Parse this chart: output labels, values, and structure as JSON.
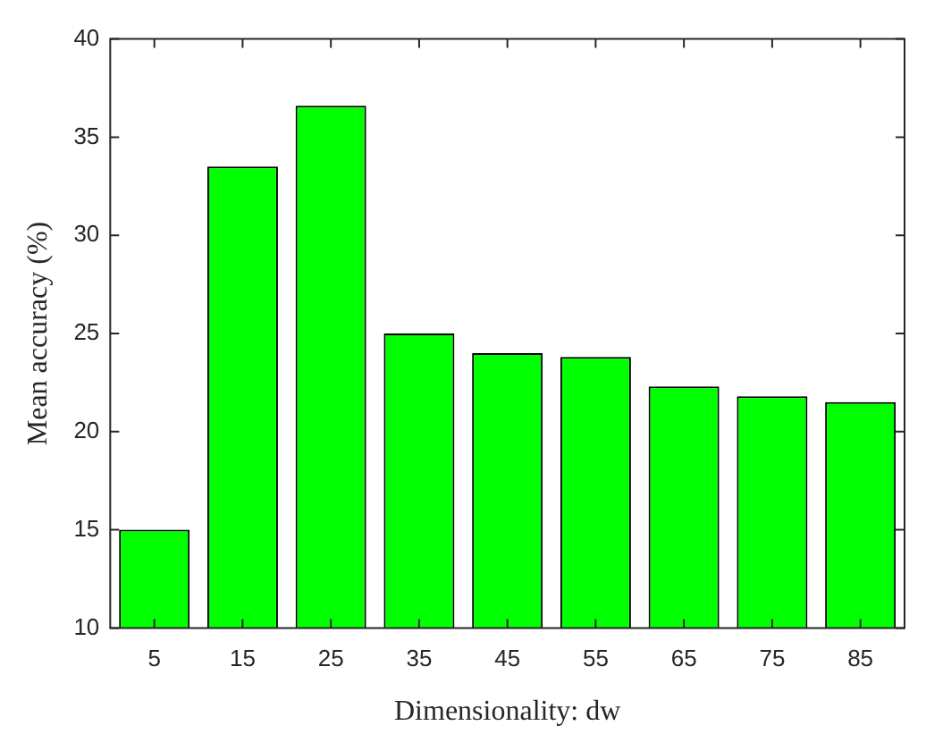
{
  "chart_data": {
    "type": "bar",
    "xlabel": "Dimensionality: dw",
    "ylabel": "Mean accuracy (%)",
    "categories": [
      "5",
      "15",
      "25",
      "35",
      "45",
      "55",
      "65",
      "75",
      "85"
    ],
    "values": [
      15.0,
      33.5,
      36.6,
      25.0,
      24.0,
      23.8,
      22.3,
      21.8,
      21.5
    ],
    "color": "#00ff00",
    "ylim": [
      10,
      40
    ],
    "yticks": [
      10,
      15,
      20,
      25,
      30,
      35,
      40
    ],
    "grid": false,
    "legend": false
  }
}
